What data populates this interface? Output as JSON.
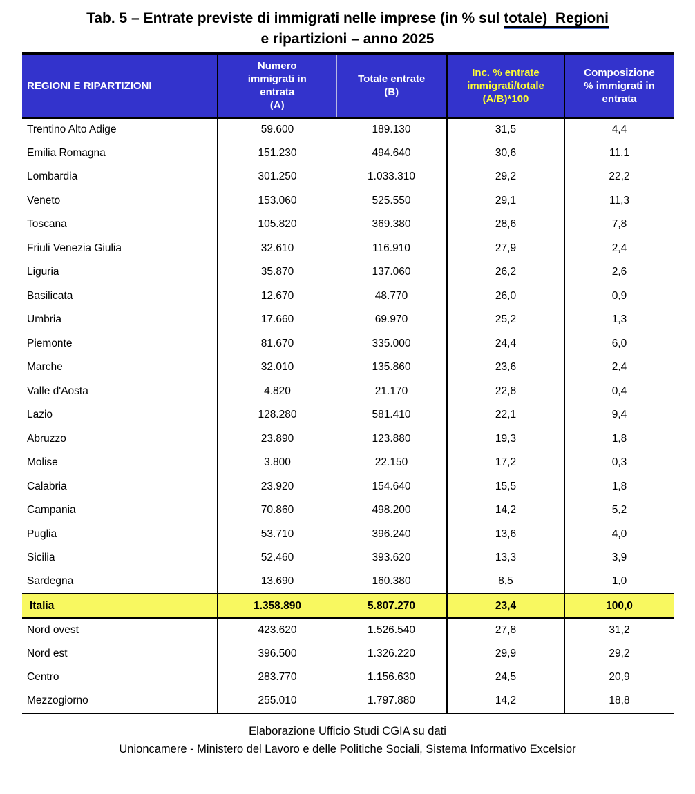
{
  "title": {
    "line1_pre": "Tab. 5 – Entrate previste di immigrati nelle imprese (in % sul ",
    "line1_underlined": "totale)  Regioni",
    "line2": "e ripartizioni – anno 2025"
  },
  "table": {
    "headers": [
      "REGIONI E RIPARTIZIONI",
      "Numero\nimmigrati in\nentrata\n(A)",
      "Totale entrate\n(B)",
      "Inc. % entrate\nimmigrati/totale\n(A/B)*100",
      "Composizione\n% immigrati in\nentrata"
    ],
    "rows": [
      {
        "type": "region",
        "name": "Trentino Alto Adige",
        "a": "59.600",
        "b": "189.130",
        "inc": "31,5",
        "comp": "4,4"
      },
      {
        "type": "region",
        "name": "Emilia Romagna",
        "a": "151.230",
        "b": "494.640",
        "inc": "30,6",
        "comp": "11,1"
      },
      {
        "type": "region",
        "name": "Lombardia",
        "a": "301.250",
        "b": "1.033.310",
        "inc": "29,2",
        "comp": "22,2"
      },
      {
        "type": "region",
        "name": "Veneto",
        "a": "153.060",
        "b": "525.550",
        "inc": "29,1",
        "comp": "11,3"
      },
      {
        "type": "region",
        "name": "Toscana",
        "a": "105.820",
        "b": "369.380",
        "inc": "28,6",
        "comp": "7,8"
      },
      {
        "type": "region",
        "name": "Friuli Venezia Giulia",
        "a": "32.610",
        "b": "116.910",
        "inc": "27,9",
        "comp": "2,4"
      },
      {
        "type": "region",
        "name": "Liguria",
        "a": "35.870",
        "b": "137.060",
        "inc": "26,2",
        "comp": "2,6"
      },
      {
        "type": "region",
        "name": "Basilicata",
        "a": "12.670",
        "b": "48.770",
        "inc": "26,0",
        "comp": "0,9"
      },
      {
        "type": "region",
        "name": "Umbria",
        "a": "17.660",
        "b": "69.970",
        "inc": "25,2",
        "comp": "1,3"
      },
      {
        "type": "region",
        "name": "Piemonte",
        "a": "81.670",
        "b": "335.000",
        "inc": "24,4",
        "comp": "6,0"
      },
      {
        "type": "region",
        "name": "Marche",
        "a": "32.010",
        "b": "135.860",
        "inc": "23,6",
        "comp": "2,4"
      },
      {
        "type": "region",
        "name": "Valle d'Aosta",
        "a": "4.820",
        "b": "21.170",
        "inc": "22,8",
        "comp": "0,4"
      },
      {
        "type": "region",
        "name": "Lazio",
        "a": "128.280",
        "b": "581.410",
        "inc": "22,1",
        "comp": "9,4"
      },
      {
        "type": "region",
        "name": "Abruzzo",
        "a": "23.890",
        "b": "123.880",
        "inc": "19,3",
        "comp": "1,8"
      },
      {
        "type": "region",
        "name": "Molise",
        "a": "3.800",
        "b": "22.150",
        "inc": "17,2",
        "comp": "0,3"
      },
      {
        "type": "region",
        "name": "Calabria",
        "a": "23.920",
        "b": "154.640",
        "inc": "15,5",
        "comp": "1,8"
      },
      {
        "type": "region",
        "name": "Campania",
        "a": "70.860",
        "b": "498.200",
        "inc": "14,2",
        "comp": "5,2"
      },
      {
        "type": "region",
        "name": "Puglia",
        "a": "53.710",
        "b": "396.240",
        "inc": "13,6",
        "comp": "4,0"
      },
      {
        "type": "region",
        "name": "Sicilia",
        "a": "52.460",
        "b": "393.620",
        "inc": "13,3",
        "comp": "3,9"
      },
      {
        "type": "region",
        "name": "Sardegna",
        "a": "13.690",
        "b": "160.380",
        "inc": "8,5",
        "comp": "1,0"
      },
      {
        "type": "total",
        "name": "Italia",
        "a": "1.358.890",
        "b": "5.807.270",
        "inc": "23,4",
        "comp": "100,0"
      },
      {
        "type": "area",
        "name": "Nord ovest",
        "a": "423.620",
        "b": "1.526.540",
        "inc": "27,8",
        "comp": "31,2"
      },
      {
        "type": "area",
        "name": "Nord est",
        "a": "396.500",
        "b": "1.326.220",
        "inc": "29,9",
        "comp": "29,2"
      },
      {
        "type": "area",
        "name": "Centro",
        "a": "283.770",
        "b": "1.156.630",
        "inc": "24,5",
        "comp": "20,9"
      },
      {
        "type": "area",
        "name": "Mezzogiorno",
        "a": "255.010",
        "b": "1.797.880",
        "inc": "14,2",
        "comp": "18,8"
      }
    ]
  },
  "footer": {
    "line1": "Elaborazione Ufficio Studi CGIA su dati",
    "line2": "Unioncamere - Ministero del Lavoro e delle Politiche Sociali, Sistema Informativo Excelsior"
  },
  "colors": {
    "header_bg": "#3333cc",
    "header_text": "#ffffff",
    "header_accent_text": "#ffff33",
    "total_row_bg": "#f8f860",
    "underline_blue": "#4a6fdb"
  }
}
